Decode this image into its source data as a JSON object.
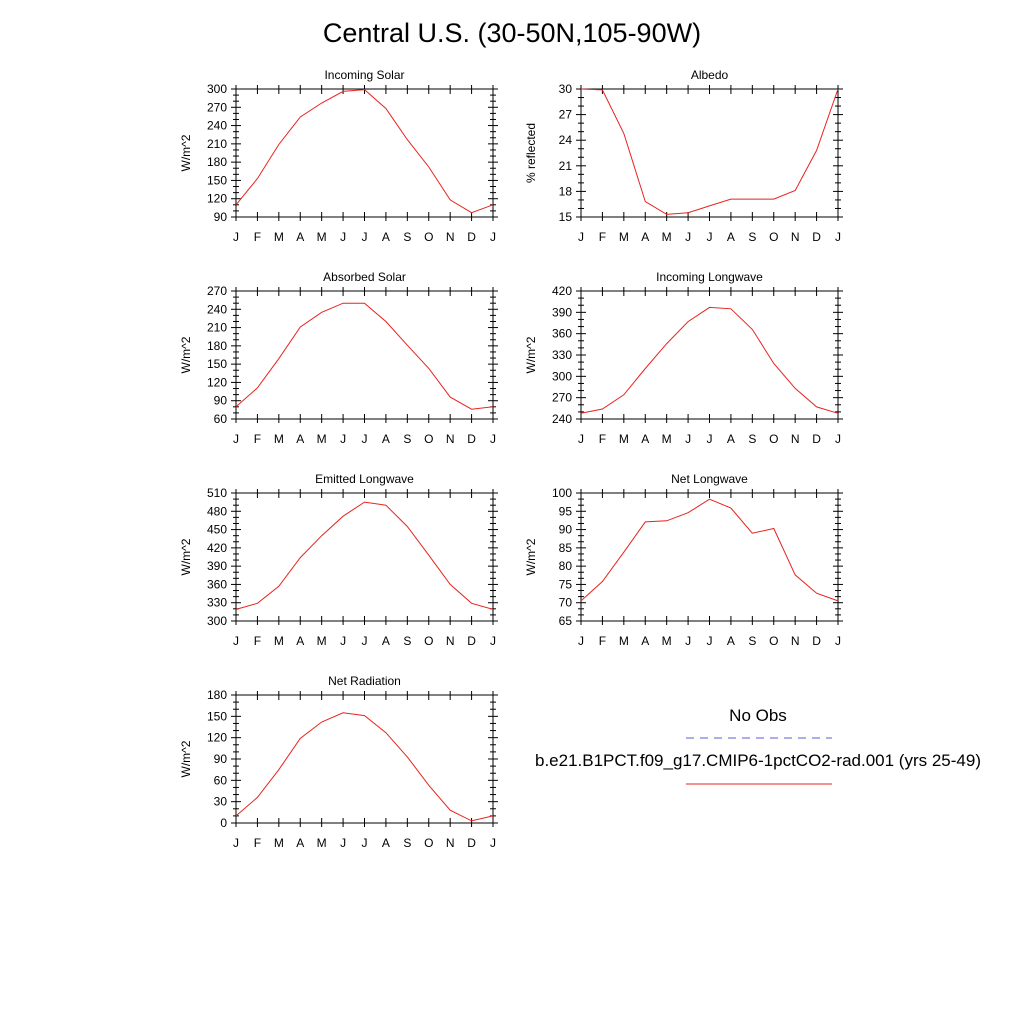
{
  "title": "Central U.S. (30-50N,105-90W)",
  "months": [
    "J",
    "F",
    "M",
    "A",
    "M",
    "J",
    "J",
    "A",
    "S",
    "O",
    "N",
    "D",
    "J"
  ],
  "legend": {
    "obs_label": "No Obs",
    "obs_color": "#5a5adc",
    "model_label": "b.e21.B1PCT.f09_g17.CMIP6-1pctCO2-rad.001 (yrs 25-49)",
    "model_color": "#e8231e"
  },
  "chart_data": [
    {
      "type": "line",
      "title": "Incoming Solar",
      "ylabel": "W/m^2",
      "ylim": [
        90,
        300
      ],
      "yticks": [
        90,
        120,
        150,
        180,
        210,
        240,
        270,
        300
      ],
      "x": [
        "J",
        "F",
        "M",
        "A",
        "M",
        "J",
        "J",
        "A",
        "S",
        "O",
        "N",
        "D",
        "J"
      ],
      "series": [
        {
          "values": [
            110,
            153,
            209,
            254,
            277,
            296,
            299,
            268,
            217,
            172,
            118,
            97,
            110
          ]
        }
      ]
    },
    {
      "type": "line",
      "title": "Albedo",
      "ylabel": "% reflected",
      "ylim": [
        15,
        30
      ],
      "yticks": [
        15,
        18,
        21,
        24,
        27,
        30
      ],
      "x": [
        "J",
        "F",
        "M",
        "A",
        "M",
        "J",
        "J",
        "A",
        "S",
        "O",
        "N",
        "D",
        "J"
      ],
      "series": [
        {
          "values": [
            30.0,
            29.9,
            24.8,
            16.8,
            15.3,
            15.5,
            16.3,
            17.1,
            17.1,
            17.1,
            18.1,
            22.8,
            30.0
          ]
        }
      ]
    },
    {
      "type": "line",
      "title": "Absorbed Solar",
      "ylabel": "W/m^2",
      "ylim": [
        60,
        270
      ],
      "yticks": [
        60,
        90,
        120,
        150,
        180,
        210,
        240,
        270
      ],
      "x": [
        "J",
        "F",
        "M",
        "A",
        "M",
        "J",
        "J",
        "A",
        "S",
        "O",
        "N",
        "D",
        "J"
      ],
      "series": [
        {
          "values": [
            80,
            111,
            159,
            211,
            235,
            250,
            250,
            220,
            181,
            143,
            96,
            76,
            80
          ]
        }
      ]
    },
    {
      "type": "line",
      "title": "Incoming Longwave",
      "ylabel": "W/m^2",
      "ylim": [
        240,
        420
      ],
      "yticks": [
        240,
        270,
        300,
        330,
        360,
        390,
        420
      ],
      "x": [
        "J",
        "F",
        "M",
        "A",
        "M",
        "J",
        "J",
        "A",
        "S",
        "O",
        "N",
        "D",
        "J"
      ],
      "series": [
        {
          "values": [
            248,
            254,
            274,
            311,
            346,
            377,
            397,
            395,
            366,
            318,
            283,
            257,
            248
          ]
        }
      ]
    },
    {
      "type": "line",
      "title": "Emitted Longwave",
      "ylabel": "W/m^2",
      "ylim": [
        300,
        510
      ],
      "yticks": [
        300,
        330,
        360,
        390,
        420,
        450,
        480,
        510
      ],
      "x": [
        "J",
        "F",
        "M",
        "A",
        "M",
        "J",
        "J",
        "A",
        "S",
        "O",
        "N",
        "D",
        "J"
      ],
      "series": [
        {
          "values": [
            319,
            329,
            357,
            404,
            440,
            472,
            495,
            490,
            455,
            408,
            360,
            329,
            319
          ]
        }
      ]
    },
    {
      "type": "line",
      "title": "Net Longwave",
      "ylabel": "W/m^2",
      "ylim": [
        65,
        100
      ],
      "yticks": [
        65,
        70,
        75,
        80,
        85,
        90,
        95,
        100
      ],
      "x": [
        "J",
        "F",
        "M",
        "A",
        "M",
        "J",
        "J",
        "A",
        "S",
        "O",
        "N",
        "D",
        "J"
      ],
      "series": [
        {
          "values": [
            70.5,
            75.8,
            83.8,
            92.1,
            92.4,
            94.6,
            98.3,
            95.9,
            89.0,
            90.3,
            77.6,
            72.6,
            70.5
          ]
        }
      ]
    },
    {
      "type": "line",
      "title": "Net Radiation",
      "ylabel": "W/m^2",
      "ylim": [
        0,
        180
      ],
      "yticks": [
        0,
        30,
        60,
        90,
        120,
        150,
        180
      ],
      "x": [
        "J",
        "F",
        "M",
        "A",
        "M",
        "J",
        "J",
        "A",
        "S",
        "O",
        "N",
        "D",
        "J"
      ],
      "series": [
        {
          "values": [
            10,
            36,
            75,
            119,
            142,
            155,
            151,
            127,
            93,
            53,
            18,
            3,
            10
          ]
        }
      ]
    }
  ]
}
